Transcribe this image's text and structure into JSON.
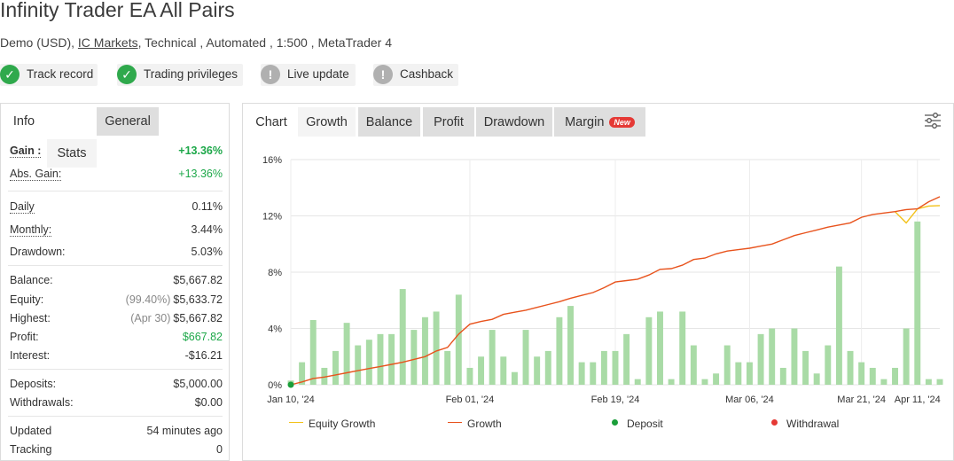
{
  "title": "Infinity Trader EA All Pairs",
  "subtitle": {
    "prefix": "Demo (USD),",
    "broker": "IC Markets",
    "suffix": ", Technical , Automated , 1:500 , MetaTrader 4"
  },
  "badges": [
    {
      "label": "Track record",
      "status": "ok"
    },
    {
      "label": "Trading privileges",
      "status": "ok"
    },
    {
      "label": "Live update",
      "status": "warn"
    },
    {
      "label": "Cashback",
      "status": "warn"
    }
  ],
  "left_tabs": [
    "Info",
    "Stats",
    "General"
  ],
  "stats": {
    "gain": {
      "label": "Gain :",
      "value": "+13.36%"
    },
    "abs_gain": {
      "label": "Abs. Gain:",
      "value": "+13.36%"
    },
    "daily": {
      "label": "Daily",
      "value": "0.11%"
    },
    "monthly": {
      "label": "Monthly:",
      "value": "3.44%"
    },
    "drawdown": {
      "label": "Drawdown:",
      "value": "5.03%"
    },
    "balance": {
      "label": "Balance:",
      "value": "$5,667.82"
    },
    "equity": {
      "label": "Equity:",
      "pre": "(99.40%)",
      "value": "$5,633.72"
    },
    "highest": {
      "label": "Highest:",
      "pre": "(Apr 30)",
      "value": "$5,667.82"
    },
    "profit": {
      "label": "Profit:",
      "value": "$667.82"
    },
    "interest": {
      "label": "Interest:",
      "value": "-$16.21"
    },
    "deposits": {
      "label": "Deposits:",
      "value": "$5,000.00"
    },
    "withdrawals": {
      "label": "Withdrawals:",
      "value": "$0.00"
    },
    "updated": {
      "label": "Updated",
      "value": "54 minutes ago"
    },
    "tracking": {
      "label": "Tracking",
      "value": "0"
    }
  },
  "chart_tabs": {
    "chart": "Chart",
    "growth": "Growth",
    "balance": "Balance",
    "profit": "Profit",
    "drawdown": "Drawdown",
    "margin": "Margin",
    "new_tag": "New"
  },
  "icons": {
    "settings": "sliders-icon",
    "ok": "check-icon",
    "warn": "exclamation-icon"
  },
  "colors": {
    "growth": "#e8531d",
    "equity_growth": "#f3c21a",
    "bars": "#a9dba6",
    "deposit": "#1a9e3a",
    "withdrawal": "#e53935",
    "positive": "#1ea84a"
  },
  "legend": [
    "Equity Growth",
    "Growth",
    "Deposit",
    "Withdrawal"
  ],
  "chart_data": {
    "type": "line",
    "title": "",
    "xlabel": "",
    "ylabel": "",
    "yticks": [
      "0%",
      "4%",
      "8%",
      "12%",
      "16%"
    ],
    "ylim": [
      0,
      16
    ],
    "xticks": [
      "Jan 10, '24",
      "Feb 01, '24",
      "Feb 19, '24",
      "Mar 06, '24",
      "Mar 21, '24",
      "Apr 11, '24"
    ],
    "grid": true,
    "legend_position": "bottom",
    "series": [
      {
        "name": "Growth",
        "type": "line",
        "x": [
          0,
          1,
          2,
          3,
          4,
          5,
          6,
          7,
          8,
          9,
          10,
          11,
          12,
          13,
          14,
          15,
          16,
          17,
          18,
          19,
          20,
          21,
          22,
          23,
          24,
          25,
          26,
          27,
          28,
          29,
          30,
          31,
          32,
          33,
          34,
          35,
          36,
          37,
          38,
          39,
          40,
          41,
          42,
          43,
          44,
          45,
          46,
          47,
          48,
          49,
          50,
          51,
          52,
          53,
          54,
          55,
          56,
          57,
          58
        ],
        "values": [
          0,
          0.2,
          0.45,
          0.55,
          0.7,
          0.85,
          1.0,
          1.15,
          1.3,
          1.45,
          1.6,
          1.8,
          2.0,
          2.4,
          2.65,
          3.6,
          4.3,
          4.5,
          4.65,
          5.0,
          5.15,
          5.3,
          5.5,
          5.7,
          5.9,
          6.15,
          6.35,
          6.55,
          6.9,
          7.3,
          7.4,
          7.5,
          7.8,
          8.2,
          8.25,
          8.5,
          8.9,
          9.0,
          9.3,
          9.5,
          9.6,
          9.7,
          9.85,
          10.0,
          10.3,
          10.6,
          10.8,
          11.0,
          11.2,
          11.35,
          11.5,
          11.9,
          12.1,
          12.2,
          12.3,
          12.45,
          12.5,
          13.0,
          13.36
        ]
      },
      {
        "name": "Equity Growth",
        "type": "line",
        "x": [
          54,
          55,
          56,
          57,
          58
        ],
        "values": [
          12.3,
          11.5,
          12.5,
          12.7,
          12.73
        ]
      },
      {
        "name": "Daily bars",
        "type": "bar",
        "x": [
          0,
          1,
          2,
          3,
          4,
          5,
          6,
          7,
          8,
          9,
          10,
          11,
          12,
          13,
          14,
          15,
          16,
          17,
          18,
          19,
          20,
          21,
          22,
          23,
          24,
          25,
          26,
          27,
          28,
          29,
          30,
          31,
          32,
          33,
          34,
          35,
          36,
          37,
          38,
          39,
          40,
          41,
          42,
          43,
          44,
          45,
          46,
          47,
          48,
          49,
          50,
          51,
          52,
          53,
          54,
          55,
          56,
          57,
          58
        ],
        "values": [
          0.3,
          1.6,
          4.6,
          1.2,
          2.4,
          4.4,
          2.8,
          3.2,
          3.6,
          3.6,
          6.8,
          3.9,
          4.8,
          5.2,
          2.4,
          6.4,
          1.2,
          2.0,
          3.9,
          2.0,
          0.9,
          3.9,
          2.0,
          2.4,
          4.8,
          5.6,
          1.6,
          1.6,
          2.4,
          2.4,
          3.6,
          0.4,
          4.8,
          5.2,
          0.4,
          5.2,
          2.8,
          0.4,
          0.8,
          2.8,
          1.6,
          1.6,
          3.6,
          4.0,
          1.2,
          4.0,
          2.4,
          0.8,
          2.8,
          8.4,
          2.4,
          1.6,
          1.2,
          0.4,
          1.2,
          4.0,
          11.6,
          0.4,
          0.4
        ]
      },
      {
        "name": "Deposit",
        "type": "scatter",
        "x": [
          0
        ],
        "values": [
          0
        ]
      }
    ]
  }
}
